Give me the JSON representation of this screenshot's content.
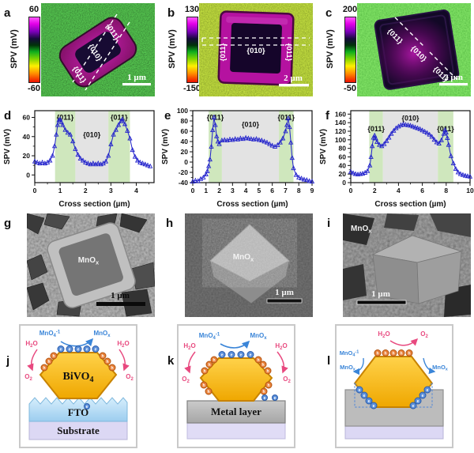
{
  "colors": {
    "spv_blue": "#2222cc",
    "band_green": "#cfe7bd",
    "band_gray": "#e3e3e3",
    "electron_blue": "#5b8fd9",
    "hole_orange": "#e8813a",
    "arrow_blue": "#3a85d8",
    "arrow_pink": "#e8497f",
    "gold": "#f6b700",
    "fto_blue": "#aedcf5",
    "substrate_lavender": "#dcd8f4",
    "metal_gray": "#b9b9b9",
    "cbar_magenta": "#ff55ff",
    "cbar_red": "#ee1000",
    "cbar_green": "#0eae1e",
    "cbar_yellow": "#fdf000"
  },
  "spv_maps": [
    {
      "letter": "a",
      "cbar_max": "60",
      "cbar_min": "-60",
      "axis_label": "SPV (mV)",
      "scalebar": "1 µm",
      "f1": "{011}",
      "f2": "{010}",
      "f3": "{011}"
    },
    {
      "letter": "b",
      "cbar_max": "130",
      "cbar_min": "-150",
      "axis_label": "SPV (mV)",
      "scalebar": "2 µm",
      "f1": "{011}",
      "f2": "{010}",
      "f3": "{011}"
    },
    {
      "letter": "c",
      "cbar_max": "200",
      "cbar_min": "-50",
      "axis_label": "SPV (mV)",
      "scalebar": "2 µm",
      "f1": "{011}",
      "f2": "{010}",
      "f3": "{011}"
    }
  ],
  "chart_data": [
    {
      "letter": "d",
      "type": "line",
      "marker": "triangle-open",
      "color": "#2222cc",
      "xlabel": "Cross section (µm)",
      "ylabel": "SPV (mV)",
      "xlim": [
        0,
        4.7
      ],
      "ylim": [
        -8,
        67
      ],
      "xticks": [
        0,
        1,
        2,
        3,
        4
      ],
      "yticks": [
        0,
        20,
        40,
        60
      ],
      "xminor": [
        0.5,
        1.5,
        2.5,
        3.5,
        4.5
      ],
      "yminor": [
        10,
        30,
        50
      ],
      "bands": [
        {
          "from": 0.8,
          "to": 1.6,
          "color": "#cfe7bd",
          "label": "{011}",
          "fy": 0.06
        },
        {
          "from": 1.6,
          "to": 2.9,
          "color": "#e3e3e3",
          "label": "{010}",
          "fy": 0.3
        },
        {
          "from": 2.9,
          "to": 3.75,
          "color": "#cfe7bd",
          "label": "{011}",
          "fy": 0.06
        }
      ],
      "x": [
        0,
        0.1,
        0.2,
        0.3,
        0.4,
        0.5,
        0.6,
        0.7,
        0.78,
        0.85,
        0.9,
        0.95,
        1.0,
        1.05,
        1.1,
        1.2,
        1.3,
        1.4,
        1.5,
        1.6,
        1.7,
        1.8,
        1.9,
        2.0,
        2.1,
        2.2,
        2.3,
        2.4,
        2.5,
        2.6,
        2.7,
        2.8,
        2.9,
        3.0,
        3.1,
        3.2,
        3.3,
        3.4,
        3.45,
        3.55,
        3.65,
        3.75,
        3.85,
        3.95,
        4.05,
        4.15,
        4.25,
        4.35,
        4.45,
        4.55
      ],
      "y": [
        14,
        13,
        12,
        13,
        12,
        13,
        15,
        20,
        30,
        42,
        52,
        57,
        58,
        55,
        52,
        47,
        44,
        42,
        35,
        27,
        21,
        17,
        15,
        13,
        12,
        11,
        12,
        11,
        12,
        11,
        12,
        14,
        20,
        32,
        42,
        47,
        52,
        56,
        58,
        53,
        46,
        38,
        26,
        19,
        15,
        13,
        12,
        11,
        10,
        9
      ]
    },
    {
      "letter": "e",
      "type": "line",
      "marker": "triangle-open",
      "color": "#2222cc",
      "xlabel": "Cross section (µm)",
      "ylabel": "SPV (mV)",
      "xlim": [
        0,
        9
      ],
      "ylim": [
        -40,
        100
      ],
      "xticks": [
        0,
        1,
        2,
        3,
        4,
        5,
        6,
        7,
        8,
        9
      ],
      "yticks": [
        -40,
        -20,
        0,
        20,
        40,
        60,
        80,
        100
      ],
      "xminor": [],
      "yminor": [
        -30,
        -10,
        10,
        30,
        50,
        70,
        90
      ],
      "bands": [
        {
          "from": 1.2,
          "to": 2.2,
          "color": "#cfe7bd",
          "label": "{011}",
          "fy": 0.06
        },
        {
          "from": 2.2,
          "to": 6.5,
          "color": "#e3e3e3",
          "label": "{010}",
          "fy": 0.16
        },
        {
          "from": 6.5,
          "to": 7.6,
          "color": "#cfe7bd",
          "label": "{011}",
          "fy": 0.06
        }
      ],
      "x": [
        0,
        0.2,
        0.4,
        0.6,
        0.8,
        1.0,
        1.1,
        1.2,
        1.3,
        1.4,
        1.5,
        1.6,
        1.7,
        1.8,
        1.9,
        2.0,
        2.2,
        2.4,
        2.6,
        2.8,
        3.0,
        3.2,
        3.4,
        3.6,
        3.8,
        4.0,
        4.2,
        4.4,
        4.6,
        4.8,
        5.0,
        5.2,
        5.4,
        5.6,
        5.8,
        6.0,
        6.2,
        6.4,
        6.6,
        6.8,
        7.0,
        7.1,
        7.2,
        7.3,
        7.4,
        7.5,
        7.6,
        7.8,
        8.0,
        8.2,
        8.4,
        8.6,
        8.8,
        9.0
      ],
      "y": [
        -38,
        -36,
        -37,
        -33,
        -30,
        -24,
        -18,
        -8,
        5,
        30,
        62,
        87,
        72,
        50,
        40,
        35,
        42,
        43,
        42,
        44,
        43,
        45,
        44,
        46,
        45,
        47,
        46,
        45,
        44,
        45,
        43,
        42,
        40,
        38,
        35,
        32,
        30,
        33,
        38,
        46,
        60,
        72,
        85,
        68,
        38,
        8,
        -12,
        -25,
        -30,
        -32,
        -34,
        -35,
        -37,
        -38
      ]
    },
    {
      "letter": "f",
      "type": "line",
      "marker": "triangle-open",
      "color": "#2222cc",
      "xlabel": "Cross section (µm)",
      "ylabel": "SPV (mV)",
      "xlim": [
        0,
        10
      ],
      "ylim": [
        0,
        168
      ],
      "xticks": [
        0,
        2,
        4,
        6,
        8,
        10
      ],
      "yticks": [
        0,
        20,
        40,
        60,
        80,
        100,
        120,
        140,
        160
      ],
      "xminor": [
        1,
        3,
        5,
        7,
        9
      ],
      "yminor": [
        10,
        30,
        50,
        70,
        90,
        110,
        130,
        150
      ],
      "bands": [
        {
          "from": 1.55,
          "to": 2.7,
          "color": "#cfe7bd",
          "label": "{011}",
          "fy": 0.22
        },
        {
          "from": 2.7,
          "to": 7.3,
          "color": "#e3e3e3",
          "label": "{010}",
          "fy": 0.07
        },
        {
          "from": 7.3,
          "to": 8.6,
          "color": "#cfe7bd",
          "label": "{011}",
          "fy": 0.22
        }
      ],
      "x": [
        0,
        0.2,
        0.4,
        0.6,
        0.8,
        1.0,
        1.2,
        1.4,
        1.6,
        1.7,
        1.8,
        1.9,
        2.0,
        2.1,
        2.2,
        2.4,
        2.6,
        2.8,
        3.0,
        3.2,
        3.4,
        3.6,
        3.8,
        4.0,
        4.2,
        4.4,
        4.6,
        4.8,
        5.0,
        5.2,
        5.4,
        5.6,
        5.8,
        6.0,
        6.2,
        6.4,
        6.6,
        6.8,
        7.0,
        7.2,
        7.4,
        7.6,
        7.8,
        7.9,
        8.0,
        8.1,
        8.2,
        8.4,
        8.6,
        8.8,
        9.0,
        9.2,
        9.4,
        9.6,
        9.8,
        10.0
      ],
      "y": [
        25,
        22,
        20,
        19,
        20,
        21,
        23,
        27,
        40,
        60,
        85,
        105,
        110,
        103,
        95,
        88,
        85,
        90,
        97,
        105,
        114,
        121,
        127,
        131,
        134,
        136,
        135,
        134,
        133,
        131,
        129,
        127,
        125,
        122,
        119,
        116,
        112,
        107,
        100,
        94,
        91,
        99,
        114,
        123,
        117,
        104,
        88,
        62,
        45,
        32,
        24,
        20,
        18,
        16,
        15,
        14
      ]
    }
  ],
  "sem_images": [
    {
      "letter": "g",
      "label_base": "MnO",
      "label_sub": "x",
      "scalebar": "1 µm"
    },
    {
      "letter": "h",
      "label_base": "MnO",
      "label_sub": "x",
      "scalebar": "1 µm"
    },
    {
      "letter": "i",
      "label_base": "MnO",
      "label_sub": "x",
      "scalebar": "1 µm"
    }
  ],
  "schematics": {
    "letters": [
      "j",
      "k",
      "l"
    ],
    "mno4": {
      "base": "MnO",
      "sub": "4",
      "sup": "-1"
    },
    "mnox": {
      "base": "MnO",
      "sub": "x"
    },
    "h2o": {
      "base": "H",
      "sub": "2",
      "tail": "O"
    },
    "o2": {
      "base": "O",
      "sub": "2"
    },
    "bivo4": {
      "base": "BiVO",
      "sub": "4"
    },
    "layers": {
      "fto": "FTO",
      "substrate": "Substrate",
      "metal": "Metal layer"
    },
    "carriers": {
      "electron": "e",
      "hole": "h"
    }
  }
}
